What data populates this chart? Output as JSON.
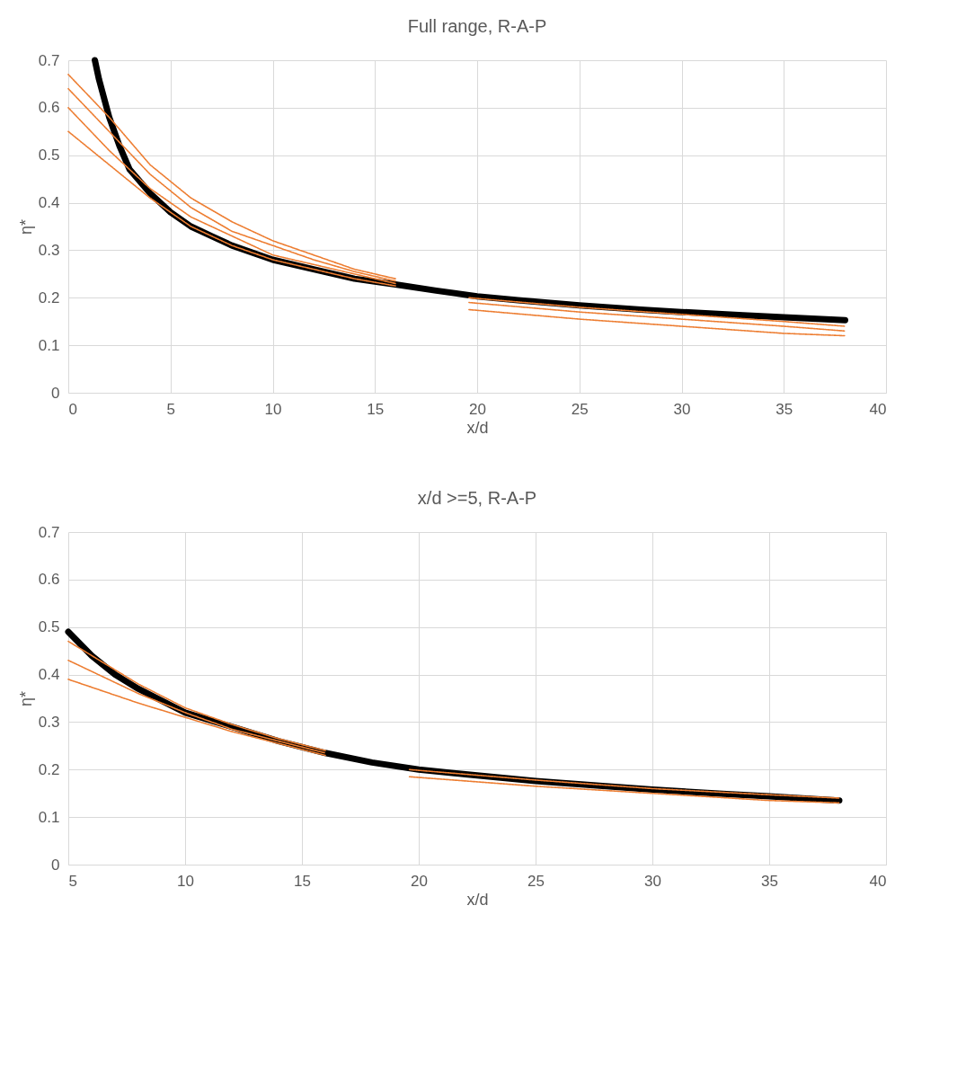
{
  "chart_data": [
    {
      "type": "line",
      "title": "Full range, R-A-P",
      "xlabel": "x/d",
      "ylabel": "η*",
      "xlim": [
        0,
        40
      ],
      "xticks": [
        0,
        5,
        10,
        15,
        20,
        25,
        30,
        35,
        40
      ],
      "ylim": [
        0,
        0.7
      ],
      "yticks": [
        0,
        0.1,
        0.2,
        0.3,
        0.4,
        0.5,
        0.6,
        0.7
      ],
      "grid": true,
      "series": [
        {
          "color": "#000000",
          "line_style": "solid",
          "x": [
            1.3,
            1.5,
            2,
            2.5,
            3,
            4,
            5,
            6,
            7,
            8,
            10,
            12,
            14,
            16,
            18,
            20,
            22,
            25,
            28,
            30,
            33,
            35,
            38
          ],
          "values": [
            0.7,
            0.66,
            0.58,
            0.52,
            0.47,
            0.42,
            0.38,
            0.35,
            0.33,
            0.31,
            0.28,
            0.26,
            0.24,
            0.228,
            0.215,
            0.203,
            0.195,
            0.184,
            0.175,
            0.17,
            0.163,
            0.159,
            0.153
          ]
        },
        {
          "color": "#ed7d31",
          "line_style": "dotted",
          "x": [
            0,
            2,
            4,
            6,
            8,
            10,
            12,
            14,
            16
          ],
          "values": [
            0.67,
            0.58,
            0.48,
            0.41,
            0.36,
            0.32,
            0.29,
            0.26,
            0.24
          ]
        },
        {
          "color": "#ed7d31",
          "line_style": "dotted",
          "x": [
            0,
            2,
            4,
            6,
            8,
            10,
            12,
            14,
            16
          ],
          "values": [
            0.64,
            0.55,
            0.46,
            0.39,
            0.34,
            0.31,
            0.28,
            0.255,
            0.235
          ]
        },
        {
          "color": "#ed7d31",
          "line_style": "dotted",
          "x": [
            0,
            2,
            4,
            6,
            8,
            10,
            12,
            14,
            16
          ],
          "values": [
            0.6,
            0.51,
            0.43,
            0.37,
            0.33,
            0.29,
            0.27,
            0.25,
            0.23
          ]
        },
        {
          "color": "#ed7d31",
          "line_style": "dotted",
          "x": [
            0,
            2,
            4,
            6,
            8,
            10,
            12,
            14,
            16
          ],
          "values": [
            0.55,
            0.48,
            0.41,
            0.35,
            0.31,
            0.28,
            0.26,
            0.24,
            0.225
          ]
        },
        {
          "color": "#ed7d31",
          "line_style": "dotted",
          "x": [
            19.6,
            25,
            30,
            35,
            38
          ],
          "values": [
            0.2,
            0.18,
            0.165,
            0.15,
            0.14
          ]
        },
        {
          "color": "#ed7d31",
          "line_style": "dotted",
          "x": [
            19.6,
            25,
            30,
            35,
            38
          ],
          "values": [
            0.19,
            0.17,
            0.155,
            0.14,
            0.13
          ]
        },
        {
          "color": "#ed7d31",
          "line_style": "dotted",
          "x": [
            19.6,
            25,
            30,
            35,
            38
          ],
          "values": [
            0.175,
            0.155,
            0.14,
            0.125,
            0.12
          ]
        }
      ]
    },
    {
      "type": "line",
      "title": "x/d >=5, R-A-P",
      "xlabel": "x/d",
      "ylabel": "η*",
      "xlim": [
        5,
        40
      ],
      "xticks": [
        5,
        10,
        15,
        20,
        25,
        30,
        35,
        40
      ],
      "ylim": [
        0,
        0.7
      ],
      "yticks": [
        0,
        0.1,
        0.2,
        0.3,
        0.4,
        0.5,
        0.6,
        0.7
      ],
      "grid": true,
      "series": [
        {
          "color": "#000000",
          "line_style": "solid",
          "x": [
            5,
            6,
            7,
            8,
            10,
            12,
            14,
            16,
            18,
            20,
            22,
            25,
            28,
            30,
            33,
            35,
            38
          ],
          "values": [
            0.49,
            0.44,
            0.4,
            0.37,
            0.32,
            0.29,
            0.26,
            0.235,
            0.215,
            0.2,
            0.19,
            0.176,
            0.165,
            0.158,
            0.149,
            0.144,
            0.135
          ]
        },
        {
          "color": "#ed7d31",
          "line_style": "dotted",
          "x": [
            5,
            8,
            10,
            12,
            14,
            16
          ],
          "values": [
            0.47,
            0.38,
            0.33,
            0.295,
            0.265,
            0.24
          ]
        },
        {
          "color": "#ed7d31",
          "line_style": "dotted",
          "x": [
            5,
            8,
            10,
            12,
            14,
            16
          ],
          "values": [
            0.43,
            0.36,
            0.32,
            0.285,
            0.26,
            0.235
          ]
        },
        {
          "color": "#ed7d31",
          "line_style": "dotted",
          "x": [
            5,
            8,
            10,
            12,
            14,
            16
          ],
          "values": [
            0.39,
            0.34,
            0.31,
            0.28,
            0.255,
            0.23
          ]
        },
        {
          "color": "#ed7d31",
          "line_style": "dotted",
          "x": [
            19.6,
            25,
            30,
            35,
            38
          ],
          "values": [
            0.2,
            0.178,
            0.16,
            0.147,
            0.14
          ]
        },
        {
          "color": "#ed7d31",
          "line_style": "dotted",
          "x": [
            19.6,
            25,
            30,
            35,
            38
          ],
          "values": [
            0.185,
            0.165,
            0.15,
            0.135,
            0.13
          ]
        }
      ]
    }
  ]
}
